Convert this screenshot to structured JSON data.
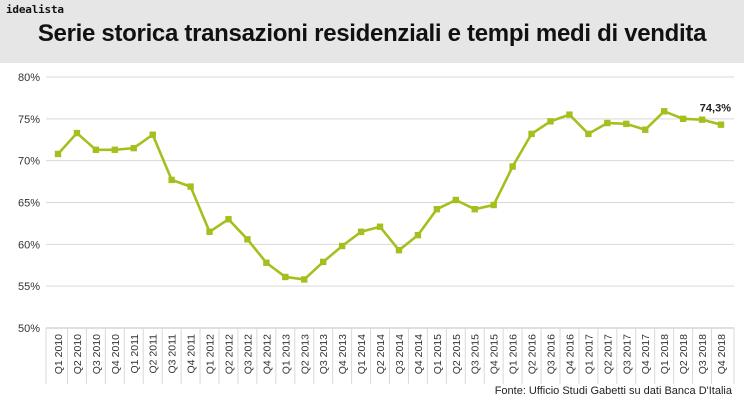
{
  "brand": "idealista",
  "header": {
    "title": "Serie storica transazioni residenziali e tempi medi di vendita"
  },
  "source": "Fonte: Ufficio Studi Gabetti su dati Banca D'Italia",
  "colors": {
    "series": "#a7bf1e",
    "header_bg": "#e6e6e6",
    "grid": "#d9d9d9"
  },
  "chart_data": {
    "type": "line",
    "title": "Serie storica transazioni residenziali e tempi medi di vendita",
    "categories": [
      "Q1 2010",
      "Q2 2010",
      "Q3 2010",
      "Q4 2010",
      "Q1 2011",
      "Q2 2011",
      "Q3 2011",
      "Q4 2011",
      "Q1 2012",
      "Q2 2012",
      "Q3 2012",
      "Q4 2012",
      "Q1 2013",
      "Q2 2013",
      "Q3 2013",
      "Q4 2013",
      "Q1 2014",
      "Q2 2014",
      "Q3 2014",
      "Q4 2014",
      "Q1 2015",
      "Q2 2015",
      "Q3 2015",
      "Q4 2015",
      "Q1 2016",
      "Q2 2016",
      "Q3 2016",
      "Q4 2016",
      "Q1 2017",
      "Q2 2017",
      "Q3 2017",
      "Q4 2017",
      "Q1 2018",
      "Q2 2018",
      "Q3 2018",
      "Q4 2018"
    ],
    "series": [
      {
        "values": [
          70.8,
          73.3,
          71.3,
          71.3,
          71.5,
          73.1,
          67.7,
          66.9,
          61.5,
          63.0,
          60.6,
          57.8,
          56.1,
          55.8,
          57.9,
          59.8,
          61.5,
          62.1,
          59.3,
          61.1,
          64.2,
          65.3,
          64.2,
          64.7,
          69.3,
          73.2,
          74.7,
          75.5,
          73.2,
          74.5,
          74.4,
          73.7,
          75.9,
          75.0,
          74.9,
          74.3
        ]
      }
    ],
    "ylim": [
      50,
      80
    ],
    "y_ticks": [
      50,
      55,
      60,
      65,
      70,
      75,
      80
    ],
    "y_tick_labels": [
      "50%",
      "55%",
      "60%",
      "65%",
      "70%",
      "75%",
      "80%"
    ],
    "annotation": {
      "index": 35,
      "text": "74,3%"
    },
    "grid": true,
    "legend": "none"
  }
}
